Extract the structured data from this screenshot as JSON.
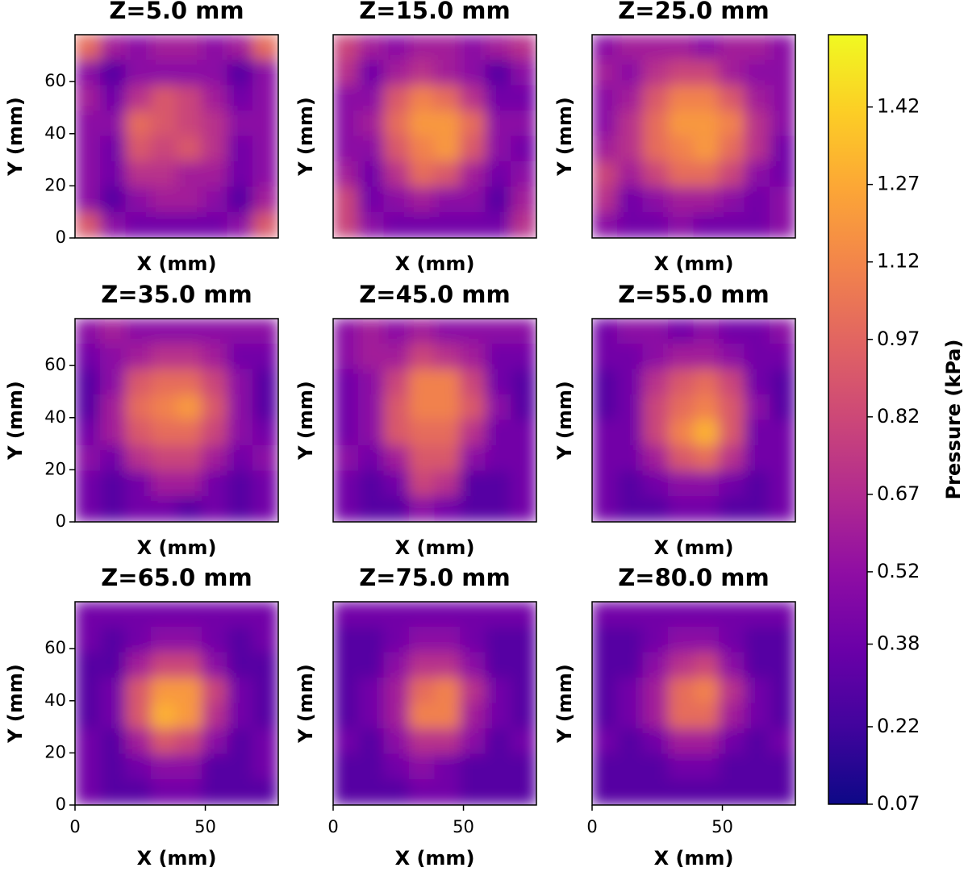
{
  "chart_data": [
    {
      "type": "heatmap",
      "title": "Z=5.0 mm",
      "xlabel": "X (mm)",
      "ylabel": "Y (mm)",
      "xlim": [
        0,
        78
      ],
      "ylim": [
        0,
        78
      ],
      "yticks": [
        0,
        20,
        40,
        60
      ],
      "values": [
        [
          1.0,
          0.6,
          0.5,
          0.6,
          0.6,
          0.5,
          0.6,
          1.0
        ],
        [
          0.5,
          0.3,
          0.5,
          0.5,
          0.5,
          0.5,
          0.3,
          0.5
        ],
        [
          0.6,
          0.4,
          0.7,
          0.9,
          0.8,
          0.6,
          0.4,
          0.5
        ],
        [
          0.5,
          0.5,
          1.0,
          0.9,
          0.8,
          0.7,
          0.5,
          0.5
        ],
        [
          0.5,
          0.4,
          0.9,
          0.8,
          0.9,
          0.7,
          0.4,
          0.5
        ],
        [
          0.5,
          0.4,
          0.7,
          0.7,
          0.6,
          0.6,
          0.4,
          0.5
        ],
        [
          0.5,
          0.3,
          0.5,
          0.6,
          0.6,
          0.5,
          0.3,
          0.6
        ],
        [
          0.9,
          0.5,
          0.4,
          0.4,
          0.4,
          0.4,
          0.5,
          0.9
        ]
      ]
    },
    {
      "type": "heatmap",
      "title": "Z=15.0 mm",
      "xlabel": "X (mm)",
      "ylabel": "Y (mm)",
      "xlim": [
        0,
        78
      ],
      "ylim": [
        0,
        78
      ],
      "values": [
        [
          0.8,
          0.6,
          0.5,
          0.6,
          0.6,
          0.5,
          0.6,
          0.7
        ],
        [
          0.7,
          0.4,
          0.6,
          0.7,
          0.6,
          0.5,
          0.3,
          0.5
        ],
        [
          0.5,
          0.5,
          0.9,
          1.1,
          1.0,
          0.7,
          0.4,
          0.4
        ],
        [
          0.5,
          0.6,
          1.0,
          1.2,
          1.2,
          1.0,
          0.5,
          0.5
        ],
        [
          0.5,
          0.5,
          0.9,
          1.1,
          1.2,
          0.9,
          0.5,
          0.4
        ],
        [
          0.6,
          0.4,
          0.7,
          1.0,
          0.9,
          0.6,
          0.4,
          0.5
        ],
        [
          0.8,
          0.4,
          0.5,
          0.6,
          0.5,
          0.5,
          0.3,
          0.6
        ],
        [
          0.8,
          0.5,
          0.4,
          0.4,
          0.4,
          0.4,
          0.4,
          0.7
        ]
      ]
    },
    {
      "type": "heatmap",
      "title": "Z=25.0 mm",
      "xlabel": "X (mm)",
      "ylabel": "Y (mm)",
      "xlim": [
        0,
        78
      ],
      "ylim": [
        0,
        78
      ],
      "values": [
        [
          0.5,
          0.6,
          0.6,
          0.6,
          0.5,
          0.6,
          0.6,
          0.5
        ],
        [
          0.6,
          0.5,
          0.7,
          0.8,
          0.8,
          0.6,
          0.5,
          0.5
        ],
        [
          0.5,
          0.6,
          0.9,
          1.1,
          1.1,
          0.9,
          0.6,
          0.5
        ],
        [
          0.5,
          0.7,
          1.0,
          1.2,
          1.2,
          1.1,
          0.7,
          0.5
        ],
        [
          0.6,
          0.7,
          1.0,
          1.1,
          1.2,
          1.0,
          0.7,
          0.4
        ],
        [
          0.8,
          0.6,
          0.8,
          1.0,
          1.0,
          0.8,
          0.5,
          0.4
        ],
        [
          0.7,
          0.4,
          0.5,
          0.6,
          0.6,
          0.5,
          0.4,
          0.5
        ],
        [
          0.5,
          0.4,
          0.4,
          0.5,
          0.4,
          0.4,
          0.4,
          0.5
        ]
      ]
    },
    {
      "type": "heatmap",
      "title": "Z=35.0 mm",
      "xlabel": "X (mm)",
      "ylabel": "Y (mm)",
      "xlim": [
        0,
        78
      ],
      "ylim": [
        0,
        78
      ],
      "yticks": [
        0,
        20,
        40,
        60
      ],
      "values": [
        [
          0.5,
          0.6,
          0.5,
          0.5,
          0.5,
          0.5,
          0.5,
          0.5
        ],
        [
          0.4,
          0.5,
          0.6,
          0.7,
          0.7,
          0.6,
          0.4,
          0.4
        ],
        [
          0.3,
          0.5,
          0.9,
          1.0,
          1.0,
          0.8,
          0.5,
          0.3
        ],
        [
          0.3,
          0.6,
          1.0,
          1.1,
          1.2,
          0.9,
          0.5,
          0.3
        ],
        [
          0.4,
          0.6,
          0.9,
          1.0,
          1.0,
          0.8,
          0.5,
          0.4
        ],
        [
          0.5,
          0.4,
          0.7,
          0.8,
          0.8,
          0.6,
          0.4,
          0.5
        ],
        [
          0.4,
          0.3,
          0.4,
          0.6,
          0.6,
          0.4,
          0.3,
          0.4
        ],
        [
          0.4,
          0.3,
          0.4,
          0.4,
          0.3,
          0.4,
          0.3,
          0.4
        ]
      ]
    },
    {
      "type": "heatmap",
      "title": "Z=45.0 mm",
      "xlabel": "X (mm)",
      "ylabel": "Y (mm)",
      "xlim": [
        0,
        78
      ],
      "ylim": [
        0,
        78
      ],
      "values": [
        [
          0.5,
          0.6,
          0.5,
          0.6,
          0.5,
          0.5,
          0.5,
          0.5
        ],
        [
          0.5,
          0.6,
          0.6,
          0.8,
          0.7,
          0.6,
          0.4,
          0.4
        ],
        [
          0.4,
          0.5,
          0.8,
          1.1,
          1.1,
          0.8,
          0.4,
          0.3
        ],
        [
          0.4,
          0.5,
          0.9,
          1.1,
          1.1,
          0.9,
          0.5,
          0.3
        ],
        [
          0.4,
          0.5,
          0.9,
          1.0,
          1.0,
          0.7,
          0.4,
          0.4
        ],
        [
          0.5,
          0.4,
          0.6,
          0.9,
          0.9,
          0.5,
          0.4,
          0.4
        ],
        [
          0.4,
          0.3,
          0.4,
          0.8,
          0.7,
          0.3,
          0.3,
          0.4
        ],
        [
          0.4,
          0.3,
          0.3,
          0.5,
          0.4,
          0.3,
          0.3,
          0.4
        ]
      ]
    },
    {
      "type": "heatmap",
      "title": "Z=55.0 mm",
      "xlabel": "X (mm)",
      "ylabel": "Y (mm)",
      "xlim": [
        0,
        78
      ],
      "ylim": [
        0,
        78
      ],
      "values": [
        [
          0.4,
          0.5,
          0.5,
          0.4,
          0.5,
          0.4,
          0.4,
          0.5
        ],
        [
          0.4,
          0.4,
          0.5,
          0.6,
          0.6,
          0.5,
          0.4,
          0.4
        ],
        [
          0.3,
          0.4,
          0.7,
          0.9,
          1.0,
          0.8,
          0.4,
          0.3
        ],
        [
          0.3,
          0.4,
          0.8,
          1.0,
          1.1,
          0.9,
          0.5,
          0.3
        ],
        [
          0.4,
          0.4,
          0.8,
          1.1,
          1.3,
          0.9,
          0.4,
          0.4
        ],
        [
          0.4,
          0.4,
          0.6,
          0.9,
          1.0,
          0.7,
          0.4,
          0.4
        ],
        [
          0.4,
          0.3,
          0.4,
          0.5,
          0.5,
          0.4,
          0.3,
          0.4
        ],
        [
          0.4,
          0.3,
          0.3,
          0.4,
          0.4,
          0.3,
          0.3,
          0.4
        ]
      ]
    },
    {
      "type": "heatmap",
      "title": "Z=65.0 mm",
      "xlabel": "X (mm)",
      "ylabel": "Y (mm)",
      "xlim": [
        0,
        78
      ],
      "ylim": [
        0,
        78
      ],
      "xticks": [
        0,
        50
      ],
      "yticks": [
        0,
        20,
        40,
        60
      ],
      "values": [
        [
          0.4,
          0.4,
          0.4,
          0.4,
          0.4,
          0.4,
          0.4,
          0.4
        ],
        [
          0.4,
          0.3,
          0.4,
          0.5,
          0.5,
          0.4,
          0.3,
          0.4
        ],
        [
          0.3,
          0.3,
          0.6,
          0.8,
          0.8,
          0.5,
          0.3,
          0.3
        ],
        [
          0.3,
          0.4,
          0.9,
          1.2,
          1.2,
          0.8,
          0.4,
          0.3
        ],
        [
          0.3,
          0.4,
          0.9,
          1.3,
          1.2,
          0.7,
          0.4,
          0.3
        ],
        [
          0.4,
          0.3,
          0.6,
          0.9,
          0.8,
          0.5,
          0.3,
          0.4
        ],
        [
          0.4,
          0.3,
          0.4,
          0.5,
          0.5,
          0.3,
          0.3,
          0.4
        ],
        [
          0.4,
          0.3,
          0.3,
          0.4,
          0.4,
          0.3,
          0.3,
          0.3
        ]
      ]
    },
    {
      "type": "heatmap",
      "title": "Z=75.0 mm",
      "xlabel": "X (mm)",
      "ylabel": "Y (mm)",
      "xlim": [
        0,
        78
      ],
      "ylim": [
        0,
        78
      ],
      "xticks": [
        0,
        50
      ],
      "values": [
        [
          0.4,
          0.4,
          0.4,
          0.4,
          0.4,
          0.4,
          0.4,
          0.4
        ],
        [
          0.3,
          0.3,
          0.4,
          0.5,
          0.5,
          0.4,
          0.3,
          0.3
        ],
        [
          0.3,
          0.3,
          0.5,
          0.7,
          0.7,
          0.5,
          0.3,
          0.3
        ],
        [
          0.3,
          0.4,
          0.6,
          1.0,
          1.1,
          0.7,
          0.4,
          0.3
        ],
        [
          0.3,
          0.4,
          0.6,
          1.1,
          1.1,
          0.6,
          0.4,
          0.3
        ],
        [
          0.4,
          0.3,
          0.5,
          0.7,
          0.7,
          0.5,
          0.3,
          0.4
        ],
        [
          0.3,
          0.3,
          0.4,
          0.5,
          0.4,
          0.3,
          0.3,
          0.3
        ],
        [
          0.3,
          0.3,
          0.3,
          0.4,
          0.4,
          0.3,
          0.3,
          0.3
        ]
      ]
    },
    {
      "type": "heatmap",
      "title": "Z=80.0 mm",
      "xlabel": "X (mm)",
      "ylabel": "Y (mm)",
      "xlim": [
        0,
        78
      ],
      "ylim": [
        0,
        78
      ],
      "xticks": [
        0,
        50
      ],
      "values": [
        [
          0.4,
          0.4,
          0.4,
          0.4,
          0.4,
          0.4,
          0.4,
          0.4
        ],
        [
          0.3,
          0.3,
          0.4,
          0.5,
          0.5,
          0.4,
          0.3,
          0.3
        ],
        [
          0.3,
          0.3,
          0.5,
          0.7,
          0.8,
          0.5,
          0.3,
          0.3
        ],
        [
          0.3,
          0.4,
          0.6,
          1.0,
          1.1,
          0.7,
          0.4,
          0.3
        ],
        [
          0.3,
          0.4,
          0.6,
          1.0,
          1.0,
          0.6,
          0.4,
          0.3
        ],
        [
          0.4,
          0.3,
          0.4,
          0.6,
          0.6,
          0.4,
          0.3,
          0.4
        ],
        [
          0.3,
          0.3,
          0.3,
          0.4,
          0.4,
          0.3,
          0.3,
          0.3
        ],
        [
          0.3,
          0.3,
          0.3,
          0.3,
          0.3,
          0.3,
          0.3,
          0.3
        ]
      ]
    },
    {
      "type": "colorbar",
      "label": "Pressure (kPa)",
      "colormap": "plasma",
      "lim": [
        0.07,
        1.56
      ],
      "ticks": [
        0.07,
        0.22,
        0.38,
        0.52,
        0.67,
        0.82,
        0.97,
        1.12,
        1.27,
        1.42
      ]
    }
  ]
}
